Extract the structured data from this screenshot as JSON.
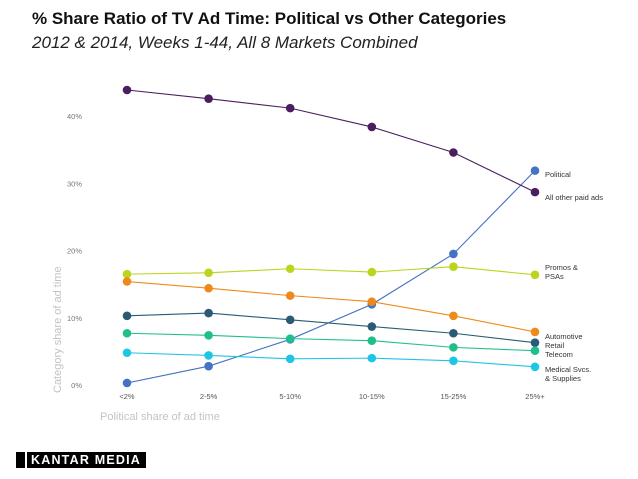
{
  "header": {
    "title": "% Share Ratio of TV Ad Time: Political vs Other Categories",
    "subtitle": "2012 & 2014, Weeks 1-44, All 8 Markets Combined"
  },
  "brand": {
    "logo_text": "KANTAR MEDIA"
  },
  "chart_data": {
    "type": "line",
    "title": "% Share Ratio of TV Ad Time: Political vs Other Categories",
    "xlabel": "Political share of ad time",
    "ylabel": "Category share of ad time",
    "categories": [
      "<2%",
      "2-5%",
      "5-10%",
      "10-15%",
      "15-25%",
      "25%+"
    ],
    "ylim": [
      0,
      45
    ],
    "yticks": [
      0,
      10,
      20,
      30,
      40
    ],
    "ytick_labels": [
      "0%",
      "10%",
      "20%",
      "30%",
      "40%"
    ],
    "grid": false,
    "series": [
      {
        "name": "Political",
        "label_lines": [
          "Political"
        ],
        "color": "#4472c4",
        "values": [
          0.3,
          2.8,
          6.8,
          12.0,
          19.5,
          31.9
        ]
      },
      {
        "name": "All other paid ads",
        "label_lines": [
          "All other paid ads"
        ],
        "color": "#4b1f5e",
        "values": [
          43.9,
          42.6,
          41.2,
          38.4,
          34.6,
          28.7
        ]
      },
      {
        "name": "Promos & PSAs",
        "label_lines": [
          "Promos &",
          "PSAs"
        ],
        "color": "#bcd41c",
        "values": [
          16.5,
          16.7,
          17.3,
          16.8,
          17.6,
          16.4
        ]
      },
      {
        "name": "Automotive",
        "label_lines": [
          "Automotive"
        ],
        "color": "#ee8a1b",
        "values": [
          15.4,
          14.4,
          13.3,
          12.4,
          10.3,
          7.9
        ]
      },
      {
        "name": "Retail",
        "label_lines": [
          "Retail"
        ],
        "color": "#2a5a76",
        "values": [
          10.3,
          10.7,
          9.7,
          8.7,
          7.7,
          6.3
        ]
      },
      {
        "name": "Telecom",
        "label_lines": [
          "Telecom"
        ],
        "color": "#1fbf8c",
        "values": [
          7.7,
          7.4,
          6.9,
          6.6,
          5.6,
          5.1
        ]
      },
      {
        "name": "Medical Svcs. & Supplies",
        "label_lines": [
          "Medical Svcs.",
          "& Supplies"
        ],
        "color": "#1ec6e6",
        "values": [
          4.8,
          4.4,
          3.9,
          4.0,
          3.6,
          2.7
        ]
      }
    ]
  }
}
